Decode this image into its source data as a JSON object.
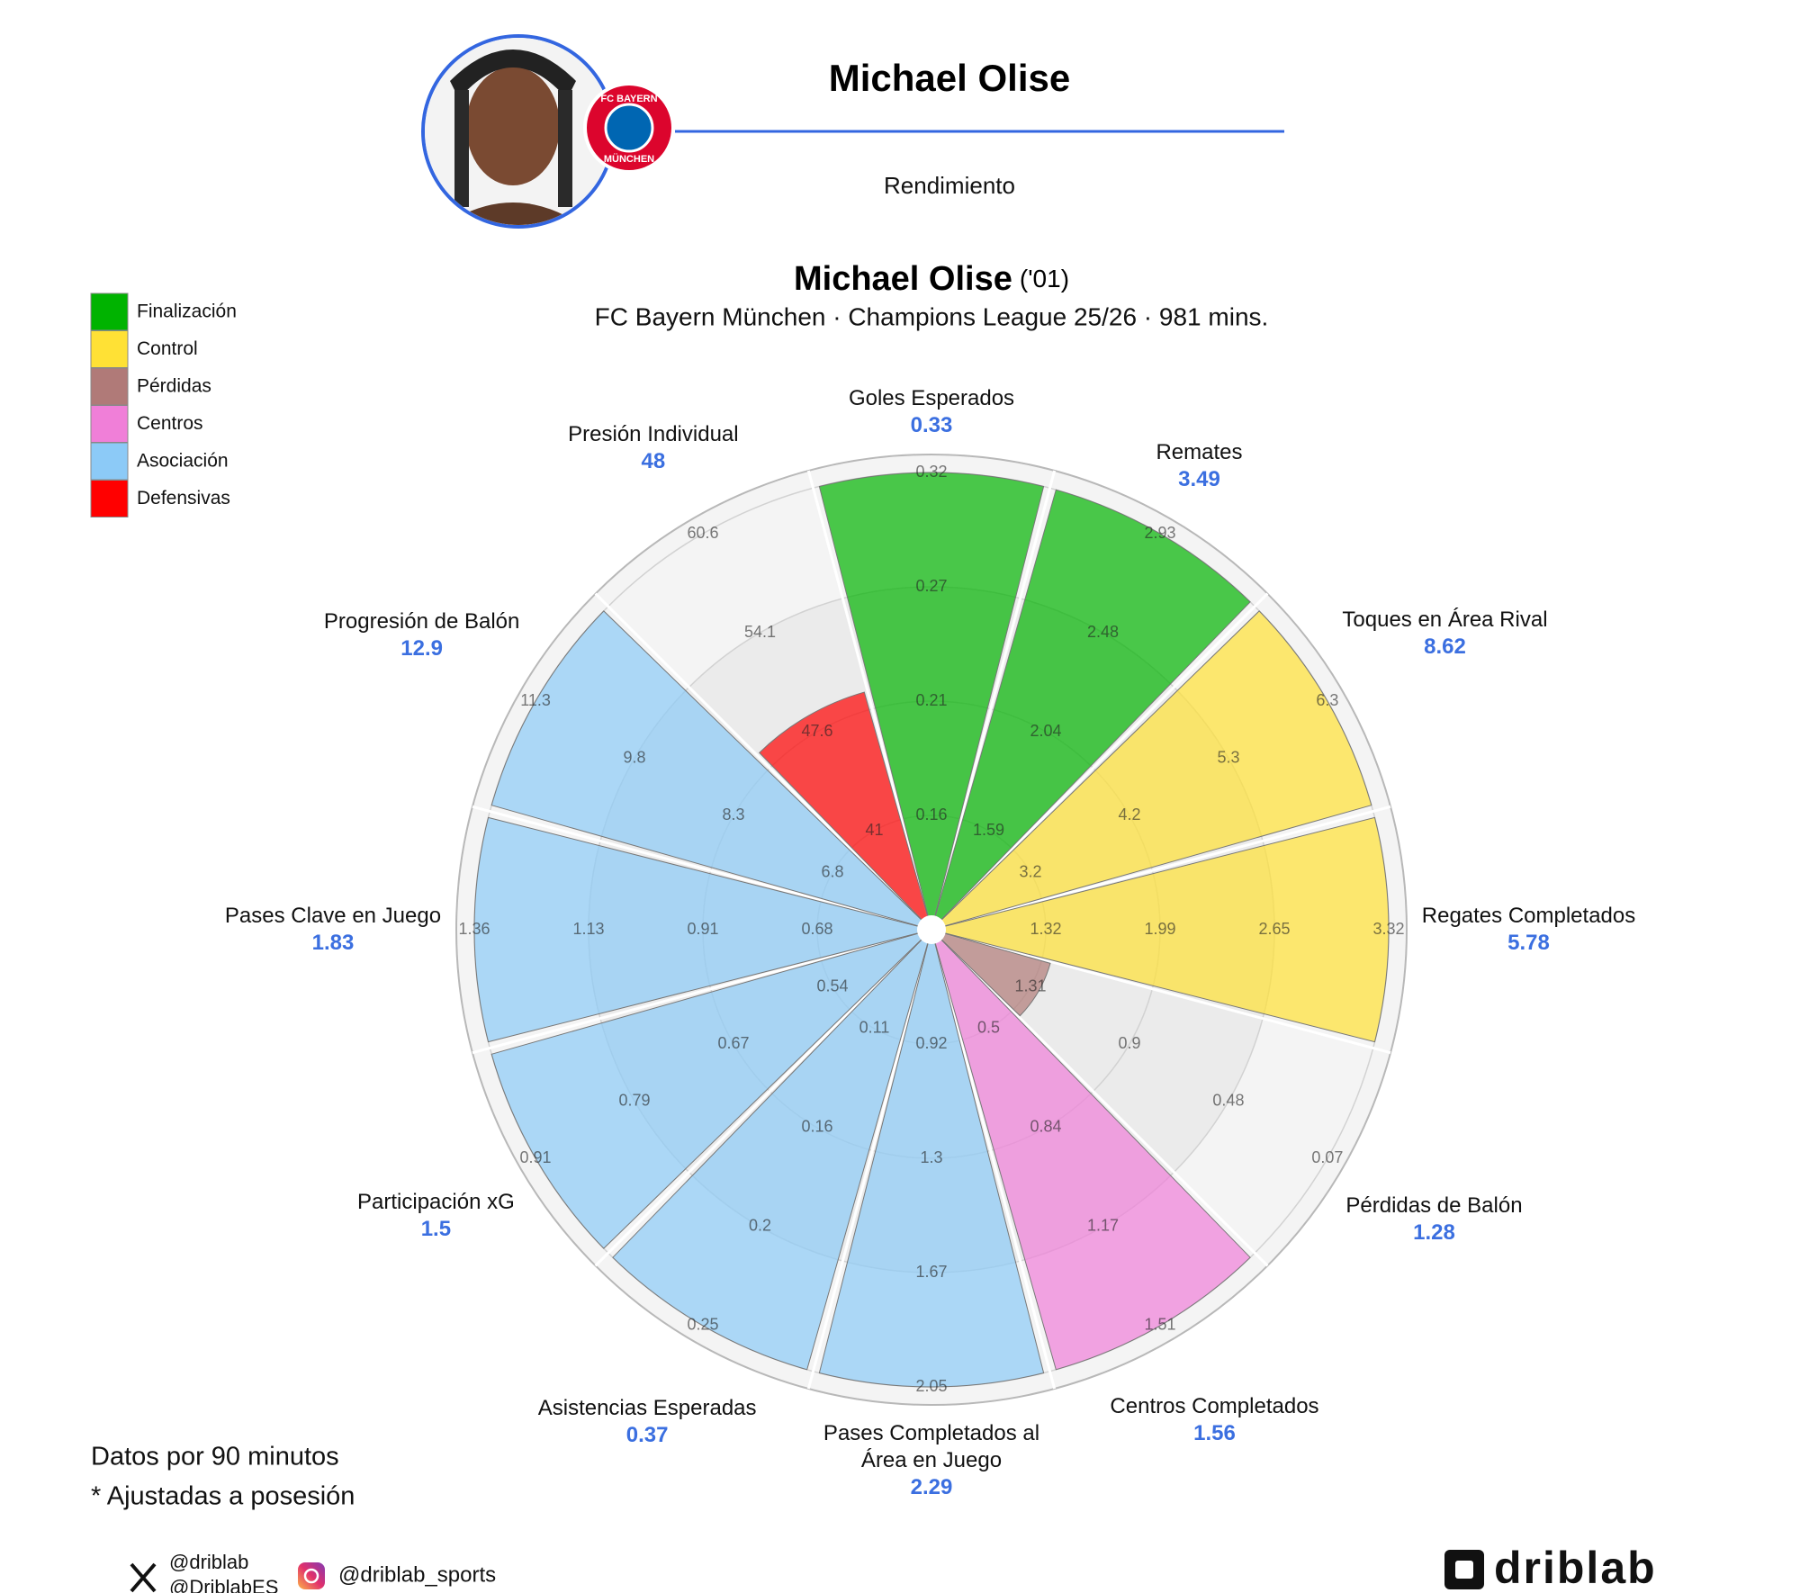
{
  "header": {
    "name": "Michael Olise",
    "section": "Rendimiento",
    "badge": [
      "FC BAYERN",
      "MÜNCHEN"
    ]
  },
  "chart_data": {
    "type": "pizza",
    "title": "Michael Olise",
    "title_note": "('01)",
    "subtitle": "FC Bayern München · Champions League 25/26 · 981 mins.",
    "legend": [
      {
        "name": "Finalización",
        "color": "#00b300"
      },
      {
        "name": "Control",
        "color": "#ffe135"
      },
      {
        "name": "Pérdidas",
        "color": "#b07a78"
      },
      {
        "name": "Centros",
        "color": "#f07fd8"
      },
      {
        "name": "Asociación",
        "color": "#8ccaf7"
      },
      {
        "name": "Defensivas",
        "color": "#ff0000"
      }
    ],
    "rlim": [
      0,
      100
    ],
    "rticks": [
      25,
      50,
      75,
      100
    ],
    "segments": [
      {
        "name": "Goles Esperados",
        "value": 0.33,
        "percentile": 100,
        "color": "#00b300",
        "ticks": [
          0.16,
          0.21,
          0.27,
          0.32
        ]
      },
      {
        "name": "Remates",
        "value": 3.49,
        "percentile": 100,
        "color": "#00b300",
        "ticks": [
          1.59,
          2.04,
          2.48,
          2.93
        ]
      },
      {
        "name": "Toques en Área Rival",
        "value": 8.62,
        "percentile": 100,
        "color": "#ffe135",
        "ticks": [
          3.2,
          4.2,
          5.3,
          6.3
        ]
      },
      {
        "name": "Regates Completados",
        "value": 5.78,
        "percentile": 100,
        "color": "#ffe135",
        "ticks": [
          1.32,
          1.99,
          2.65,
          3.32
        ]
      },
      {
        "name": "Pérdidas de Balón",
        "value": 1.28,
        "percentile": 27,
        "color": "#b07a78",
        "ticks": [
          1.31,
          0.9,
          0.48,
          0.07
        ]
      },
      {
        "name": "Centros Completados",
        "value": 1.56,
        "percentile": 100,
        "color": "#f07fd8",
        "ticks": [
          0.5,
          0.84,
          1.17,
          1.51
        ]
      },
      {
        "name": "Pases Completados al\nÁrea en Juego",
        "value": 2.29,
        "percentile": 100,
        "color": "#8ccaf7",
        "ticks": [
          0.92,
          1.3,
          1.67,
          2.05
        ]
      },
      {
        "name": "Asistencias Esperadas",
        "value": 0.37,
        "percentile": 100,
        "color": "#8ccaf7",
        "ticks": [
          0.11,
          0.16,
          0.2,
          0.25
        ]
      },
      {
        "name": "Participación xG",
        "value": 1.5,
        "percentile": 100,
        "color": "#8ccaf7",
        "ticks": [
          0.54,
          0.67,
          0.79,
          0.91
        ]
      },
      {
        "name": "Pases Clave en Juego",
        "value": 1.83,
        "percentile": 100,
        "color": "#8ccaf7",
        "ticks": [
          0.68,
          0.91,
          1.13,
          1.36
        ]
      },
      {
        "name": "Progresión de Balón",
        "value": 12.9,
        "percentile": 100,
        "color": "#8ccaf7",
        "ticks": [
          6.8,
          8.3,
          9.8,
          11.3
        ]
      },
      {
        "name": "Presión Individual",
        "value": 48,
        "percentile": 54,
        "color": "#ff0000",
        "ticks": [
          41,
          47.6,
          54.1,
          60.6
        ]
      }
    ]
  },
  "notes": [
    "Datos por 90 minutos",
    "* Ajustadas a posesión"
  ],
  "footer": {
    "x_handles": [
      "@driblab",
      "@DriblabES"
    ],
    "instagram": "@driblab_sports",
    "brand": "driblab"
  }
}
